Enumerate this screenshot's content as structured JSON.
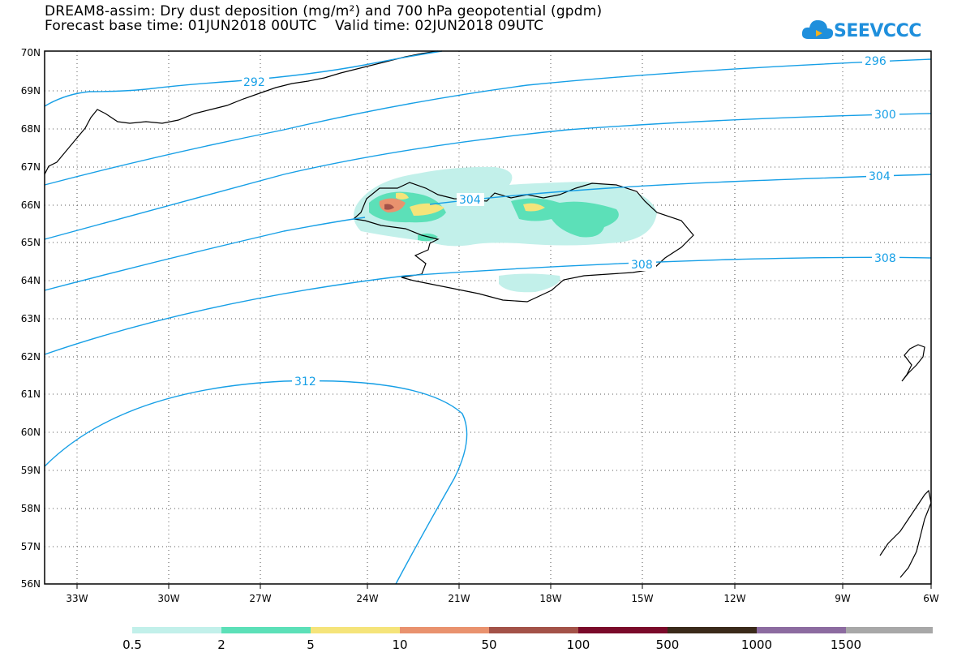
{
  "title_line1": "DREAM8-assim: Dry dust deposition (mg/m²) and 700 hPa geopotential (gpdm)",
  "title_line2": "Forecast base time: 01JUN2018 00UTC    Valid time: 02JUN2018 09UTC",
  "logo_text": "SEEVCCC",
  "lat_labels": [
    "70N",
    "69N",
    "68N",
    "67N",
    "66N",
    "65N",
    "64N",
    "63N",
    "62N",
    "61N",
    "60N",
    "59N",
    "58N",
    "57N",
    "56N"
  ],
  "lon_labels": [
    "33W",
    "30W",
    "27W",
    "24W",
    "21W",
    "18W",
    "15W",
    "12W",
    "9W",
    "6W"
  ],
  "contours": [
    {
      "label": "292"
    },
    {
      "label": "296"
    },
    {
      "label": "300"
    },
    {
      "label": "304"
    },
    {
      "label": "304"
    },
    {
      "label": "308"
    },
    {
      "label": "308"
    },
    {
      "label": "312"
    }
  ],
  "legend": {
    "colors": [
      "#c2f0ea",
      "#5ce0b8",
      "#f5e47a",
      "#e9926e",
      "#a35248",
      "#7a0a2a",
      "#3a2a1a",
      "#8c6ba0",
      "#a8a8a8"
    ],
    "labels": [
      "0.5",
      "2",
      "5",
      "10",
      "50",
      "100",
      "500",
      "1000",
      "1500"
    ]
  },
  "colors": {
    "contour": "#169fe6",
    "coast": "#000000"
  }
}
